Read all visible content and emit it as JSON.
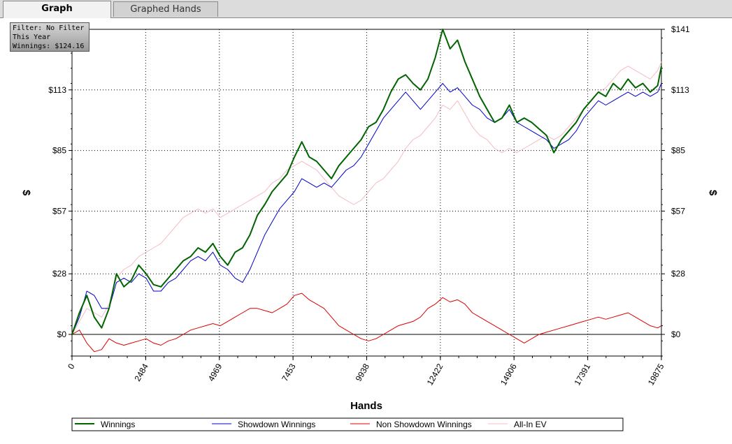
{
  "tabs": [
    {
      "label": "Graph",
      "active": true
    },
    {
      "label": "Graphed Hands",
      "active": false
    }
  ],
  "filter_box": {
    "line1": "Filter: No Filter",
    "line2": "This Year",
    "line3": "Winnings: $124.16"
  },
  "colors": {
    "winnings": "#006400",
    "showdown": "#0000cc",
    "non_showdown": "#dd0000",
    "allin_ev": "#f4bcc4"
  },
  "chart_data": {
    "type": "line",
    "xlabel": "Hands",
    "ylabel": "$",
    "xlim": [
      0,
      19875
    ],
    "ylim": [
      -10,
      141
    ],
    "x_ticks": [
      "0",
      "2484",
      "4969",
      "7453",
      "9938",
      "12422",
      "14906",
      "17391",
      "19875"
    ],
    "x_tick_values": [
      0,
      2484,
      4969,
      7453,
      9938,
      12422,
      14906,
      17391,
      19875
    ],
    "y_ticks": [
      "$0",
      "$28",
      "$57",
      "$85",
      "$113",
      "$141"
    ],
    "y_tick_values": [
      0,
      28,
      57,
      85,
      113,
      141
    ],
    "legend_position": "bottom",
    "grid": true,
    "series": [
      {
        "name": "Winnings",
        "x": [
          0,
          250,
          500,
          750,
          1000,
          1250,
          1500,
          1750,
          2000,
          2250,
          2500,
          2750,
          3000,
          3250,
          3500,
          3750,
          4000,
          4250,
          4500,
          4750,
          5000,
          5250,
          5500,
          5750,
          6000,
          6250,
          6500,
          6750,
          7000,
          7250,
          7500,
          7750,
          8000,
          8250,
          8500,
          8750,
          9000,
          9250,
          9500,
          9750,
          10000,
          10250,
          10500,
          10750,
          11000,
          11250,
          11500,
          11750,
          12000,
          12250,
          12500,
          12750,
          13000,
          13250,
          13500,
          13750,
          14000,
          14250,
          14500,
          14750,
          15000,
          15250,
          15500,
          15750,
          16000,
          16250,
          16500,
          16750,
          17000,
          17250,
          17500,
          17750,
          18000,
          18250,
          18500,
          18750,
          19000,
          19250,
          19500,
          19750,
          19875
        ],
        "values": [
          0,
          10,
          18,
          8,
          3,
          12,
          28,
          22,
          25,
          32,
          28,
          23,
          22,
          26,
          30,
          34,
          36,
          40,
          38,
          42,
          36,
          32,
          38,
          40,
          46,
          55,
          60,
          66,
          70,
          74,
          82,
          89,
          82,
          80,
          76,
          72,
          78,
          82,
          86,
          90,
          96,
          98,
          104,
          112,
          118,
          120,
          116,
          113,
          118,
          128,
          141,
          132,
          136,
          126,
          118,
          110,
          104,
          98,
          100,
          106,
          98,
          100,
          98,
          95,
          92,
          84,
          90,
          94,
          98,
          104,
          108,
          112,
          110,
          116,
          113,
          118,
          114,
          116,
          112,
          115,
          124
        ]
      },
      {
        "name": "Showdown Winnings",
        "x": [
          0,
          250,
          500,
          750,
          1000,
          1250,
          1500,
          1750,
          2000,
          2250,
          2500,
          2750,
          3000,
          3250,
          3500,
          3750,
          4000,
          4250,
          4500,
          4750,
          5000,
          5250,
          5500,
          5750,
          6000,
          6250,
          6500,
          6750,
          7000,
          7250,
          7500,
          7750,
          8000,
          8250,
          8500,
          8750,
          9000,
          9250,
          9500,
          9750,
          10000,
          10250,
          10500,
          10750,
          11000,
          11250,
          11500,
          11750,
          12000,
          12250,
          12500,
          12750,
          13000,
          13250,
          13500,
          13750,
          14000,
          14250,
          14500,
          14750,
          15000,
          15250,
          15500,
          15750,
          16000,
          16250,
          16500,
          16750,
          17000,
          17250,
          17500,
          17750,
          18000,
          18250,
          18500,
          18750,
          19000,
          19250,
          19500,
          19750,
          19875
        ],
        "values": [
          0,
          8,
          20,
          18,
          12,
          12,
          24,
          26,
          24,
          28,
          26,
          20,
          20,
          24,
          26,
          30,
          34,
          36,
          34,
          38,
          32,
          30,
          26,
          24,
          30,
          38,
          46,
          52,
          58,
          62,
          66,
          72,
          70,
          68,
          70,
          68,
          72,
          76,
          78,
          82,
          88,
          94,
          100,
          104,
          108,
          112,
          108,
          104,
          108,
          112,
          116,
          112,
          114,
          110,
          106,
          104,
          100,
          98,
          100,
          104,
          98,
          96,
          94,
          92,
          90,
          86,
          88,
          90,
          94,
          100,
          104,
          108,
          106,
          108,
          110,
          112,
          110,
          112,
          110,
          112,
          116
        ]
      },
      {
        "name": "Non Showdown Winnings",
        "x": [
          0,
          250,
          500,
          750,
          1000,
          1250,
          1500,
          1750,
          2000,
          2250,
          2500,
          2750,
          3000,
          3250,
          3500,
          3750,
          4000,
          4250,
          4500,
          4750,
          5000,
          5250,
          5500,
          5750,
          6000,
          6250,
          6500,
          6750,
          7000,
          7250,
          7500,
          7750,
          8000,
          8250,
          8500,
          8750,
          9000,
          9250,
          9500,
          9750,
          10000,
          10250,
          10500,
          10750,
          11000,
          11250,
          11500,
          11750,
          12000,
          12250,
          12500,
          12750,
          13000,
          13250,
          13500,
          13750,
          14000,
          14250,
          14500,
          14750,
          15000,
          15250,
          15500,
          15750,
          16000,
          16250,
          16500,
          16750,
          17000,
          17250,
          17500,
          17750,
          18000,
          18250,
          18500,
          18750,
          19000,
          19250,
          19500,
          19750,
          19875
        ],
        "values": [
          0,
          2,
          -4,
          -8,
          -7,
          -2,
          -4,
          -5,
          -4,
          -3,
          -2,
          -4,
          -5,
          -3,
          -2,
          0,
          2,
          3,
          4,
          5,
          4,
          6,
          8,
          10,
          12,
          12,
          11,
          10,
          12,
          14,
          18,
          19,
          16,
          14,
          12,
          8,
          4,
          2,
          0,
          -2,
          -3,
          -2,
          0,
          2,
          4,
          5,
          6,
          8,
          12,
          14,
          17,
          15,
          16,
          14,
          10,
          8,
          6,
          4,
          2,
          0,
          -2,
          -4,
          -2,
          0,
          1,
          2,
          3,
          4,
          5,
          6,
          7,
          8,
          7,
          8,
          9,
          10,
          8,
          6,
          4,
          3,
          4
        ]
      },
      {
        "name": "All-In EV",
        "x": [
          0,
          250,
          500,
          750,
          1000,
          1250,
          1500,
          1750,
          2000,
          2250,
          2500,
          2750,
          3000,
          3250,
          3500,
          3750,
          4000,
          4250,
          4500,
          4750,
          5000,
          5250,
          5500,
          5750,
          6000,
          6250,
          6500,
          6750,
          7000,
          7250,
          7500,
          7750,
          8000,
          8250,
          8500,
          8750,
          9000,
          9250,
          9500,
          9750,
          10000,
          10250,
          10500,
          10750,
          11000,
          11250,
          11500,
          11750,
          12000,
          12250,
          12500,
          12750,
          13000,
          13250,
          13500,
          13750,
          14000,
          14250,
          14500,
          14750,
          15000,
          15250,
          15500,
          15750,
          16000,
          16250,
          16500,
          16750,
          17000,
          17250,
          17500,
          17750,
          18000,
          18250,
          18500,
          18750,
          19000,
          19250,
          19500,
          19750,
          19875
        ],
        "values": [
          0,
          6,
          12,
          10,
          8,
          14,
          26,
          30,
          32,
          36,
          38,
          40,
          42,
          46,
          50,
          54,
          56,
          58,
          56,
          58,
          54,
          56,
          58,
          60,
          62,
          64,
          66,
          70,
          72,
          76,
          78,
          80,
          78,
          76,
          72,
          68,
          64,
          62,
          60,
          62,
          66,
          70,
          72,
          76,
          80,
          86,
          90,
          92,
          96,
          100,
          106,
          104,
          108,
          102,
          96,
          92,
          90,
          86,
          84,
          86,
          84,
          86,
          88,
          90,
          92,
          90,
          92,
          96,
          100,
          104,
          108,
          112,
          114,
          118,
          122,
          124,
          122,
          120,
          118,
          122,
          126
        ]
      }
    ]
  }
}
